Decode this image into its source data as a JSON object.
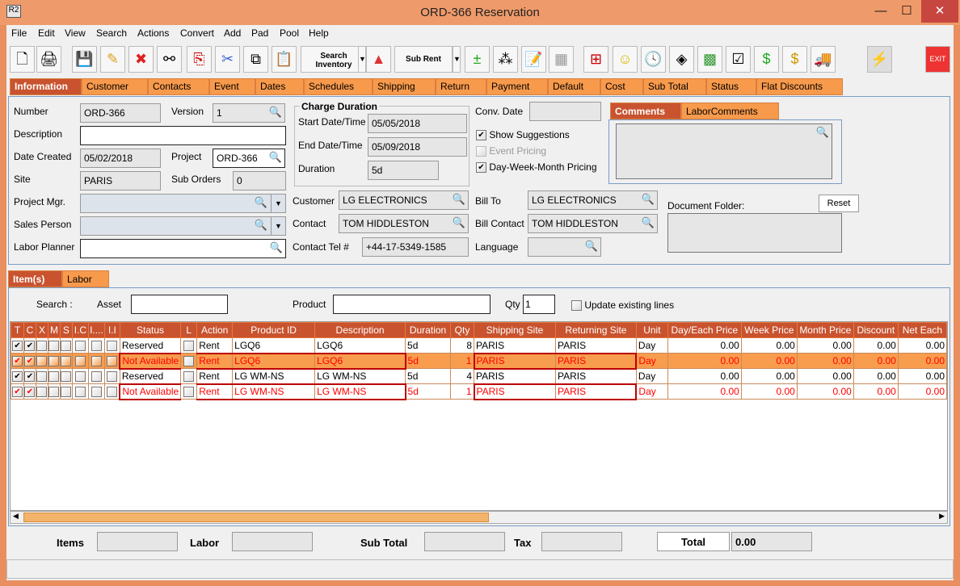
{
  "window": {
    "title": "ORD-366 Reservation",
    "icon": "R2",
    "min": "—",
    "max": "☐",
    "close": "✕"
  },
  "menu": [
    "File",
    "Edit",
    "View",
    "Search",
    "Actions",
    "Convert",
    "Add",
    "Pad",
    "Pool",
    "Help"
  ],
  "toolbar": {
    "search_inventory": "Search Inventory",
    "sub_rent": "Sub Rent",
    "exit": "EXIT"
  },
  "tabs": [
    "Information",
    "Customer",
    "Contacts",
    "Event",
    "Dates",
    "Schedules",
    "Shipping",
    "Return",
    "Payment",
    "Default",
    "Cost",
    "Sub Total",
    "Status",
    "Flat Discounts"
  ],
  "info": {
    "number_label": "Number",
    "number": "ORD-366",
    "version_label": "Version",
    "version": "1",
    "description_label": "Description",
    "description": "",
    "date_created_label": "Date Created",
    "date_created": "05/02/2018",
    "project_label": "Project",
    "project": "ORD-366",
    "site_label": "Site",
    "site": "PARIS",
    "sub_orders_label": "Sub Orders",
    "sub_orders": "0",
    "project_mgr_label": "Project Mgr.",
    "sales_person_label": "Sales Person",
    "labor_planner_label": "Labor Planner",
    "charge_duration_label": "Charge Duration",
    "start_label": "Start Date/Time",
    "start": "05/05/2018",
    "end_label": "End Date/Time",
    "end": "05/09/2018",
    "duration_label": "Duration",
    "duration": "5d",
    "customer_label": "Customer",
    "customer": "LG ELECTRONICS",
    "contact_label": "Contact",
    "contact": "TOM HIDDLESTON",
    "tel_label": "Contact Tel #",
    "tel": "+44-17-5349-1585",
    "conv_date_label": "Conv. Date",
    "show_suggestions": "Show Suggestions",
    "event_pricing": "Event Pricing",
    "dwm_pricing": "Day-Week-Month Pricing",
    "bill_to_label": "Bill To",
    "bill_to": "LG ELECTRONICS",
    "bill_contact_label": "Bill Contact",
    "bill_contact": "TOM HIDDLESTON",
    "language_label": "Language",
    "comments_tab": "Comments",
    "labor_comments_tab": "LaborComments",
    "doc_folder_label": "Document Folder:",
    "reset": "Reset"
  },
  "items_tabs": [
    "Item(s)",
    "Labor"
  ],
  "search": {
    "label": "Search :",
    "asset_label": "Asset",
    "product_label": "Product",
    "qty_label": "Qty",
    "qty": "1",
    "update_label": "Update existing lines"
  },
  "columns": [
    "T",
    "C",
    "X",
    "M",
    "S",
    "I.C",
    "I....",
    "I.I",
    "Status",
    "L",
    "Action",
    "Product ID",
    "Description",
    "Duration",
    "Qty",
    "Shipping Site",
    "Returning Site",
    "Unit",
    "Day/Each Price",
    "Week Price",
    "Month Price",
    "Discount",
    "Net Each"
  ],
  "rows": [
    {
      "status": "Reserved",
      "action": "Rent",
      "product": "LGQ6",
      "desc": "LGQ6",
      "duration": "5d",
      "qty": "8",
      "ship": "PARIS",
      "ret": "PARIS",
      "unit": "Day",
      "day": "0.00",
      "week": "0.00",
      "month": "0.00",
      "disc": "0.00",
      "net": "0.00"
    },
    {
      "status": "Not Available",
      "action": "Rent",
      "product": "LGQ6",
      "desc": "LGQ6",
      "duration": "5d",
      "qty": "1",
      "ship": "PARIS",
      "ret": "PARIS",
      "unit": "Day",
      "day": "0.00",
      "week": "0.00",
      "month": "0.00",
      "disc": "0.00",
      "net": "0.00"
    },
    {
      "status": "Reserved",
      "action": "Rent",
      "product": "LG WM-NS",
      "desc": "LG WM-NS",
      "duration": "5d",
      "qty": "4",
      "ship": "PARIS",
      "ret": "PARIS",
      "unit": "Day",
      "day": "0.00",
      "week": "0.00",
      "month": "0.00",
      "disc": "0.00",
      "net": "0.00"
    },
    {
      "status": "Not Available",
      "action": "Rent",
      "product": "LG WM-NS",
      "desc": "LG WM-NS",
      "duration": "5d",
      "qty": "1",
      "ship": "PARIS",
      "ret": "PARIS",
      "unit": "Day",
      "day": "0.00",
      "week": "0.00",
      "month": "0.00",
      "disc": "0.00",
      "net": "0.00"
    }
  ],
  "footer": {
    "items": "Items",
    "labor": "Labor",
    "sub_total": "Sub Total",
    "tax": "Tax",
    "total": "Total",
    "total_value": "0.00"
  },
  "colors": {
    "accent": "#c9532f",
    "tab": "#f89a4c",
    "selected_row": "#f89c4e",
    "error_text": "#ff0000"
  }
}
